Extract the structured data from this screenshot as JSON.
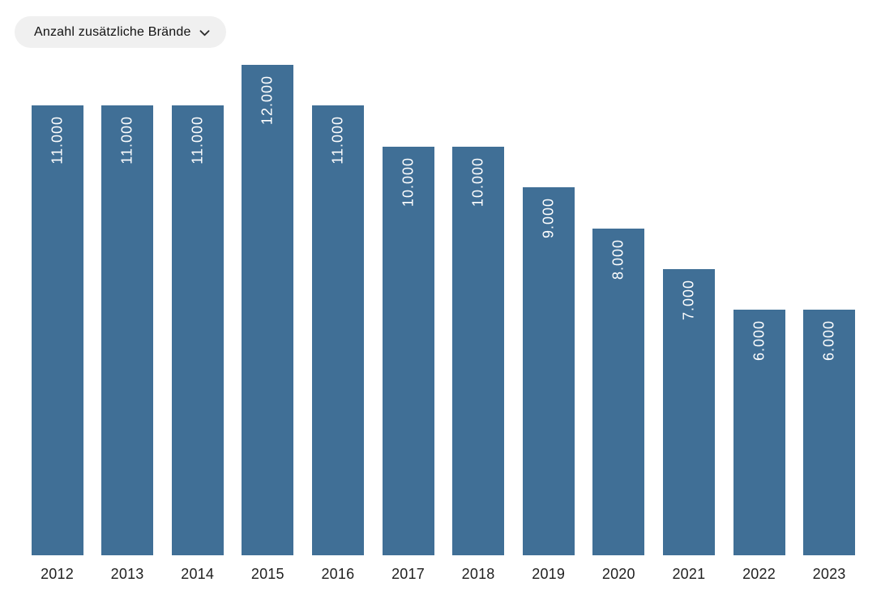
{
  "controls": {
    "metric_dropdown": {
      "label": "Anzahl zusätzliche Brände"
    }
  },
  "chart_data": {
    "type": "bar",
    "title": "Anzahl zusätzliche Brände",
    "categories": [
      "2012",
      "2013",
      "2014",
      "2015",
      "2016",
      "2017",
      "2018",
      "2019",
      "2020",
      "2021",
      "2022",
      "2023"
    ],
    "values": [
      11000,
      11000,
      11000,
      12000,
      11000,
      10000,
      10000,
      9000,
      8000,
      7000,
      6000,
      6000
    ],
    "value_labels": [
      "11.000",
      "11.000",
      "11.000",
      "12.000",
      "11.000",
      "10.000",
      "10.000",
      "9.000",
      "8.000",
      "7.000",
      "6.000",
      "6.000"
    ],
    "xlabel": "",
    "ylabel": "",
    "ylim": [
      0,
      12000
    ],
    "grid": false,
    "legend_position": "none",
    "value_label_rotation": -90,
    "colors": {
      "bar": "#406f96",
      "value_label": "#ffffff",
      "category_label": "#1f1f1f",
      "pill_background": "#f0f0f0",
      "pill_text": "#121212"
    }
  }
}
